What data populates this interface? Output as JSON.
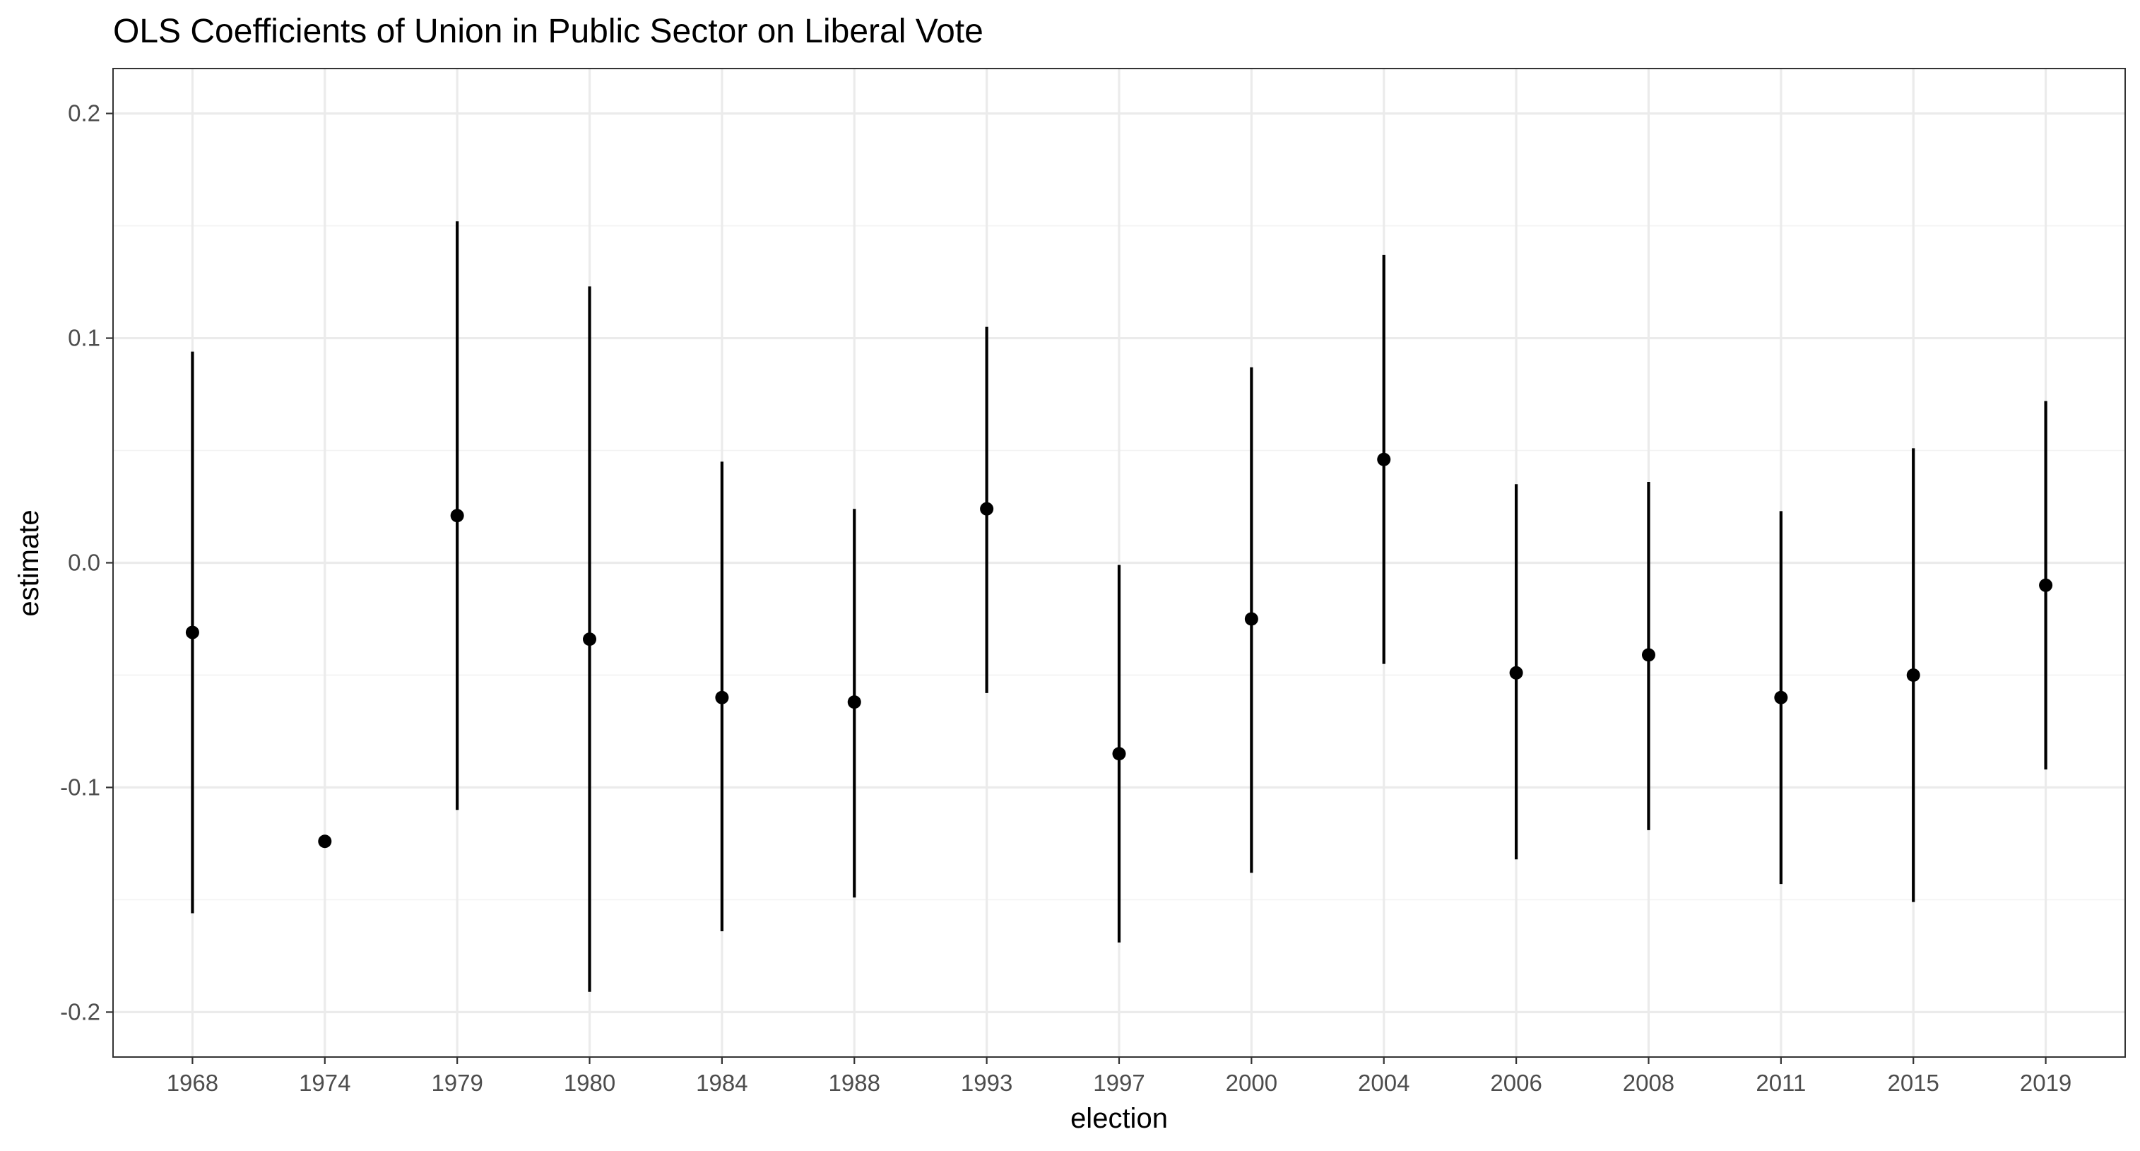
{
  "chart_data": {
    "type": "scatter",
    "subtype": "point-range",
    "title": "OLS Coefficients of Union in Public Sector on Liberal Vote",
    "xlabel": "election",
    "ylabel": "estimate",
    "ylim": [
      -0.22,
      0.22
    ],
    "y_ticks": [
      0.2,
      0.1,
      0.0,
      -0.1,
      -0.2
    ],
    "y_tick_labels": [
      "0.2",
      "0.1",
      "0.0",
      "-0.1",
      "-0.2"
    ],
    "y_minor_ticks": [
      0.15,
      0.05,
      -0.05,
      -0.15
    ],
    "grid": true,
    "categories": [
      "1968",
      "1974",
      "1979",
      "1980",
      "1984",
      "1988",
      "1993",
      "1997",
      "2000",
      "2004",
      "2006",
      "2008",
      "2011",
      "2015",
      "2019"
    ],
    "series": [
      {
        "name": "estimate",
        "values": [
          -0.031,
          -0.124,
          0.021,
          -0.034,
          -0.06,
          -0.062,
          0.024,
          -0.085,
          -0.025,
          0.046,
          -0.049,
          -0.041,
          -0.06,
          -0.05,
          -0.01
        ],
        "lower": [
          -0.156,
          null,
          -0.11,
          -0.191,
          -0.164,
          -0.149,
          -0.058,
          -0.169,
          -0.138,
          -0.045,
          -0.132,
          -0.119,
          -0.143,
          -0.151,
          -0.092
        ],
        "upper": [
          0.094,
          null,
          0.152,
          0.123,
          0.045,
          0.024,
          0.105,
          -0.001,
          0.087,
          0.137,
          0.035,
          0.036,
          0.023,
          0.051,
          0.072
        ]
      }
    ]
  }
}
